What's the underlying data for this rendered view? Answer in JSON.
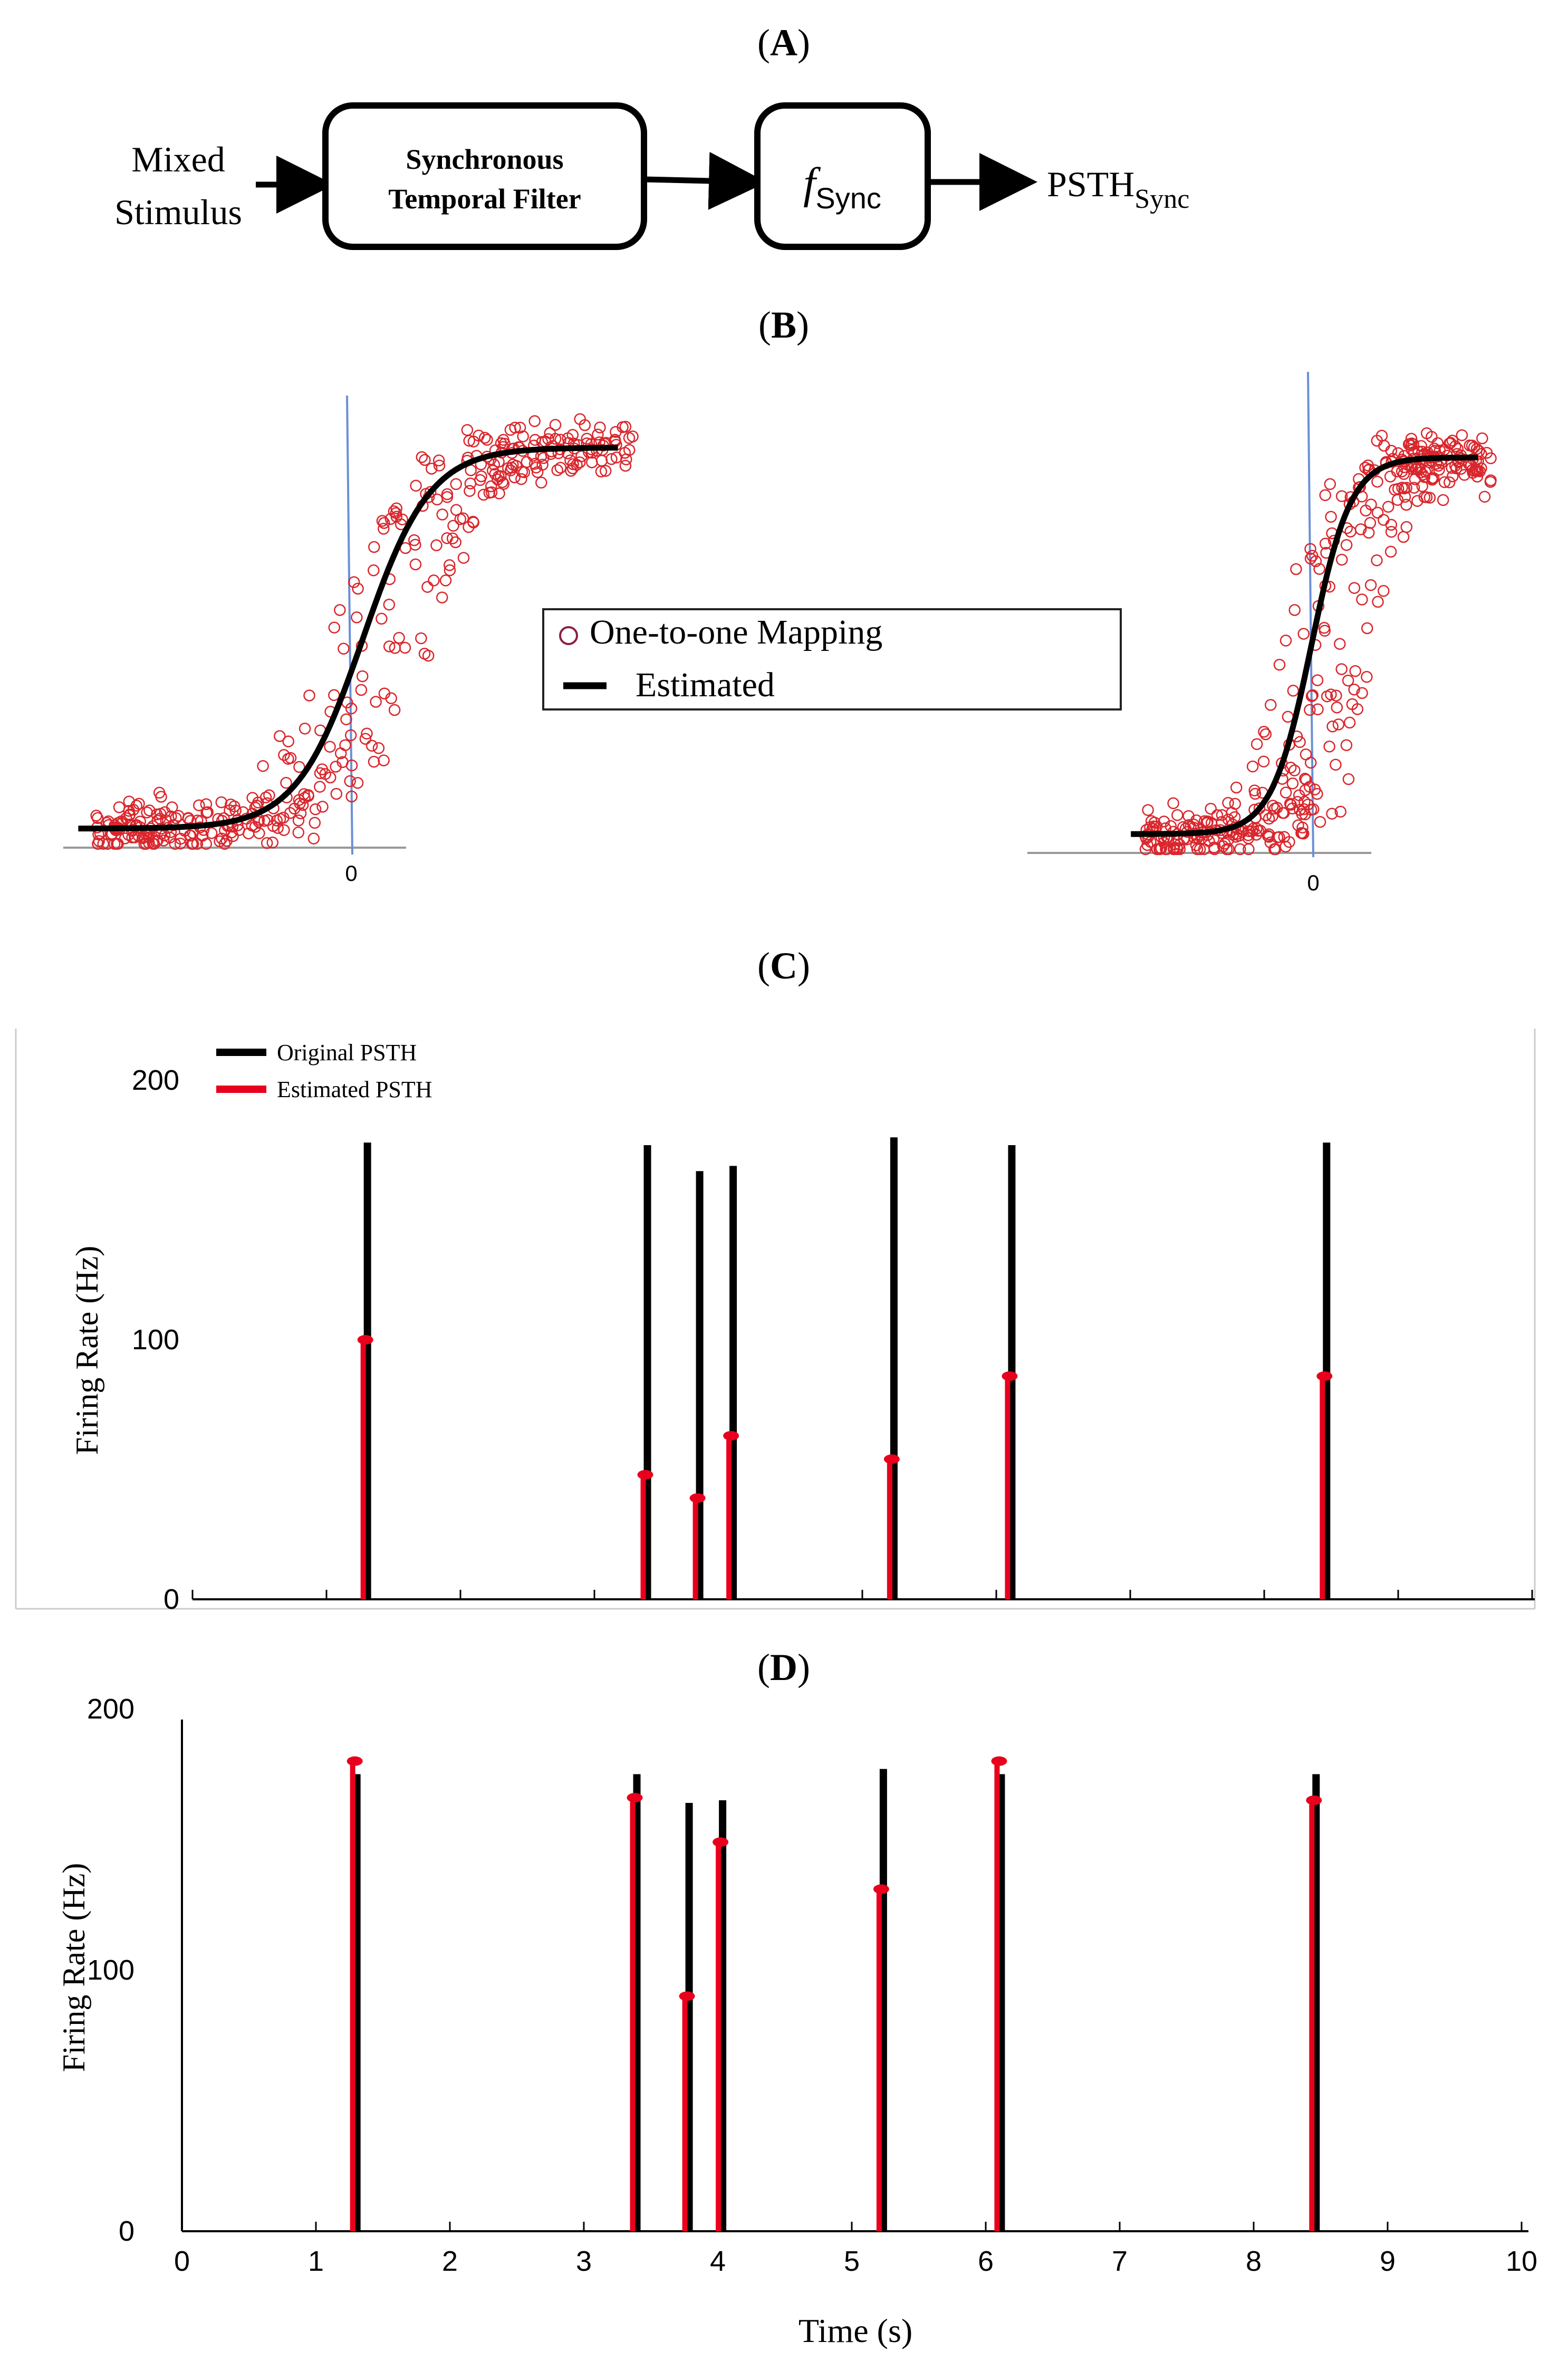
{
  "panels": {
    "a": {
      "letter": "A"
    },
    "b": {
      "letter": "B"
    },
    "c": {
      "letter": "C"
    },
    "d": {
      "letter": "D"
    }
  },
  "panel_a": {
    "input_line1": "Mixed",
    "input_line2": "Stimulus",
    "filter_line1": "Synchronous",
    "filter_line2": "Temporal Filter",
    "func_symbol": "f",
    "func_sub": "Sync",
    "output_main": "PSTH",
    "output_sub": "Sync"
  },
  "panel_b": {
    "legend": [
      "One-to-one Mapping",
      "Estimated"
    ],
    "zero_tick": "0"
  },
  "panel_c": {
    "ylabel": "Firing Rate (Hz)",
    "legend": [
      "Original PSTH",
      "Estimated PSTH"
    ]
  },
  "panel_d": {
    "ylabel": "Firing Rate (Hz)",
    "xlabel": "Time (s)"
  },
  "colors": {
    "original": "#000000",
    "estimated": "#e8001c",
    "scatter": "#d9262c",
    "zero_line": "#6b8fd6"
  },
  "chart_data": [
    {
      "panel": "B-left",
      "type": "scatter",
      "title": "",
      "legend": [
        "One-to-one Mapping",
        "Estimated"
      ],
      "xlabel": "",
      "ylabel": "",
      "x_ticks": [
        "0"
      ],
      "xlim": [
        -1.0,
        0.9
      ],
      "ylim": [
        -0.05,
        1.15
      ],
      "curve": {
        "name": "Estimated",
        "model": "sigmoid",
        "center": 0.0,
        "steepness": 9,
        "x_range": [
          -0.95,
          0.85
        ]
      },
      "points": {
        "name": "One-to-one Mapping",
        "count": 420
      }
    },
    {
      "panel": "B-right",
      "type": "scatter",
      "title": "",
      "legend": [
        "One-to-one Mapping",
        "Estimated"
      ],
      "xlabel": "",
      "ylabel": "",
      "x_ticks": [
        "0"
      ],
      "xlim": [
        -1.0,
        0.9
      ],
      "ylim": [
        -0.05,
        1.15
      ],
      "curve": {
        "name": "Estimated",
        "model": "sigmoid",
        "center": 0.0,
        "steepness": 14,
        "x_range": [
          -0.65,
          0.6
        ]
      },
      "points": {
        "name": "One-to-one Mapping",
        "count": 420
      }
    },
    {
      "panel": "C",
      "type": "bar",
      "title": "",
      "xlabel": "",
      "ylabel": "Firing Rate (Hz)",
      "ylim": [
        0,
        225
      ],
      "xlim": [
        0,
        10
      ],
      "y_ticks": [
        0,
        100,
        200
      ],
      "x": [
        1.29,
        3.38,
        3.77,
        4.02,
        5.22,
        6.1,
        8.45
      ],
      "series": [
        {
          "name": "Original PSTH",
          "values": [
            176,
            175,
            165,
            167,
            178,
            175,
            176
          ]
        },
        {
          "name": "Estimated PSTH",
          "values": [
            100,
            48,
            39,
            63,
            54,
            86,
            86
          ]
        }
      ]
    },
    {
      "panel": "D",
      "type": "bar",
      "title": "",
      "xlabel": "Time (s)",
      "ylabel": "Firing Rate (Hz)",
      "ylim": [
        0,
        205
      ],
      "xlim": [
        0,
        10
      ],
      "y_ticks": [
        0,
        100,
        200
      ],
      "x_ticks": [
        0,
        1,
        2,
        3,
        4,
        5,
        6,
        7,
        8,
        9,
        10
      ],
      "x": [
        1.29,
        3.38,
        3.77,
        4.02,
        5.22,
        6.1,
        8.45
      ],
      "series": [
        {
          "name": "Original PSTH",
          "values": [
            175,
            175,
            164,
            165,
            177,
            175,
            175
          ]
        },
        {
          "name": "Estimated PSTH",
          "values": [
            180,
            166,
            90,
            149,
            131,
            180,
            165
          ]
        }
      ]
    }
  ]
}
